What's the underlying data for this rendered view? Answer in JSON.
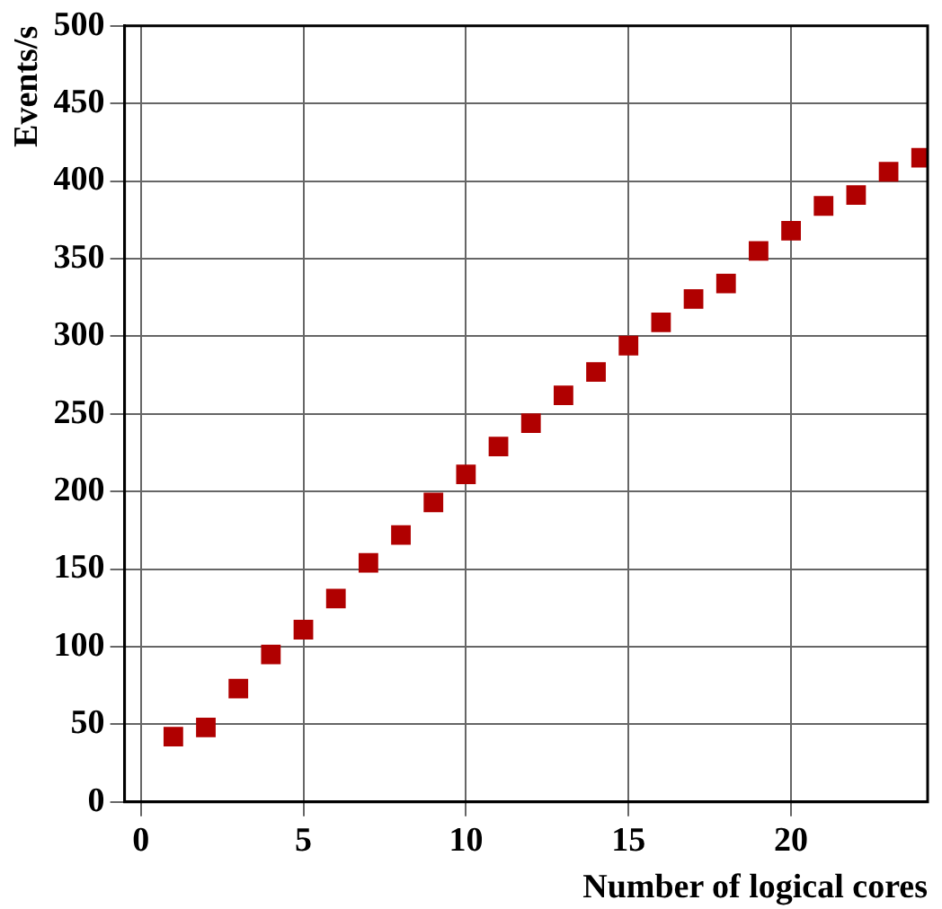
{
  "chart_data": {
    "type": "scatter",
    "xlabel": "Number of logical cores",
    "ylabel": "Events/s",
    "x": [
      1,
      2,
      3,
      4,
      5,
      6,
      7,
      8,
      9,
      10,
      11,
      12,
      13,
      14,
      15,
      16,
      17,
      18,
      19,
      20,
      21,
      22,
      23,
      24
    ],
    "series": [
      {
        "color": "#b00000",
        "values": [
          42,
          48,
          73,
          95,
          111,
          131,
          154,
          172,
          193,
          211,
          229,
          244,
          262,
          277,
          294,
          309,
          324,
          334,
          355,
          368,
          384,
          391,
          406,
          415
        ]
      }
    ],
    "xlim": [
      -0.5,
      24.2
    ],
    "ylim": [
      0,
      500
    ],
    "xticks": [
      0,
      5,
      10,
      15,
      20
    ],
    "yticks": [
      0,
      50,
      100,
      150,
      200,
      250,
      300,
      350,
      400,
      450,
      500
    ],
    "grid": true,
    "marker": "square",
    "legend": false
  }
}
